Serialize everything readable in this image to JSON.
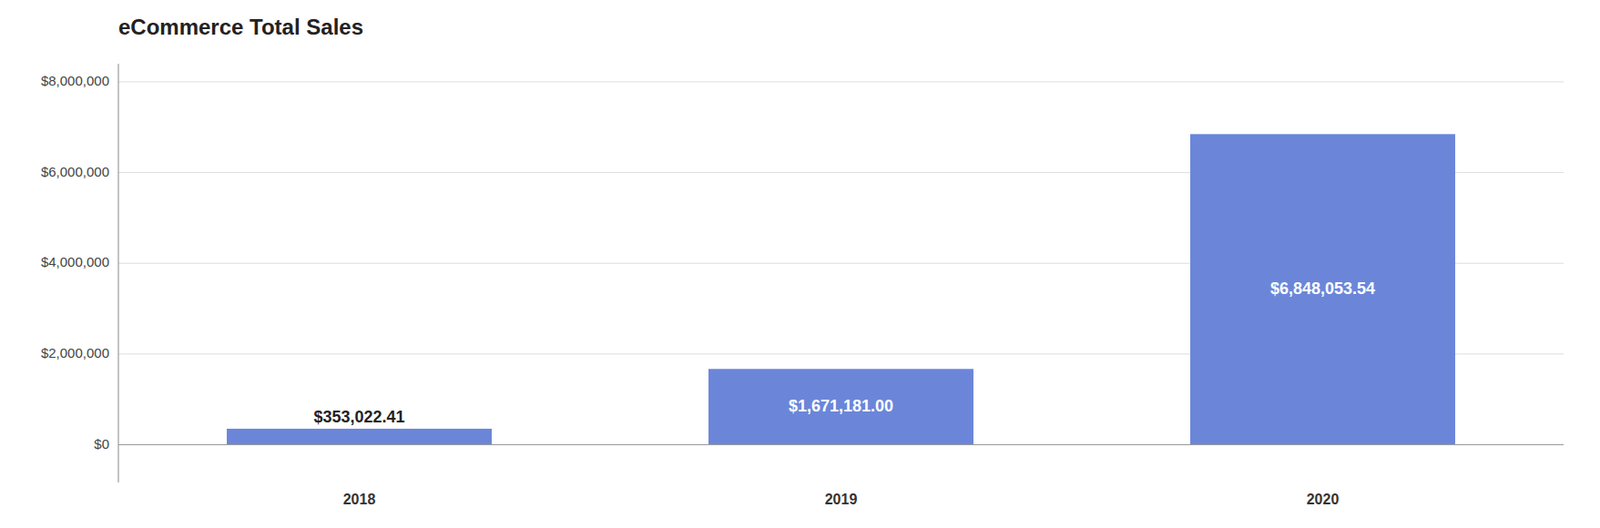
{
  "chart_data": {
    "type": "bar",
    "title": "eCommerce Total Sales",
    "categories": [
      "2018",
      "2019",
      "2020"
    ],
    "values": [
      353022.41,
      1671181.0,
      6848053.54
    ],
    "value_labels": [
      "$353,022.41",
      "$1,671,181.00",
      "$6,848,053.54"
    ],
    "color": "#6b86d9",
    "ylim": [
      -832000,
      8400000
    ],
    "yticks": [
      {
        "value": 0,
        "label": "$0"
      },
      {
        "value": 2000000,
        "label": "$2,000,000"
      },
      {
        "value": 4000000,
        "label": "$4,000,000"
      },
      {
        "value": 6000000,
        "label": "$6,000,000"
      },
      {
        "value": 8000000,
        "label": "$8,000,000"
      }
    ],
    "grid": true,
    "data_labels": true
  }
}
